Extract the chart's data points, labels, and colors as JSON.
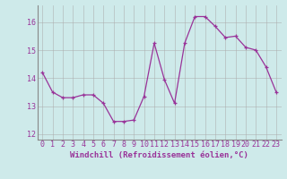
{
  "x": [
    0,
    1,
    2,
    3,
    4,
    5,
    6,
    7,
    8,
    9,
    10,
    11,
    12,
    13,
    14,
    15,
    16,
    17,
    18,
    19,
    20,
    21,
    22,
    23
  ],
  "y": [
    14.2,
    13.5,
    13.3,
    13.3,
    13.4,
    13.4,
    13.1,
    12.45,
    12.45,
    12.5,
    13.35,
    15.25,
    13.95,
    13.1,
    15.25,
    16.2,
    16.2,
    15.85,
    15.45,
    15.5,
    15.1,
    15.0,
    14.4,
    13.5
  ],
  "line_color": "#993399",
  "marker": "+",
  "marker_size": 3,
  "linewidth": 0.9,
  "bg_color": "#ceeaea",
  "grid_color": "#aaaaaa",
  "border_color": "#888888",
  "xlabel": "Windchill (Refroidissement éolien,°C)",
  "xlabel_color": "#993399",
  "xlabel_fontsize": 6.5,
  "tick_color": "#993399",
  "tick_fontsize": 6,
  "ylim": [
    11.8,
    16.6
  ],
  "xlim": [
    -0.5,
    23.5
  ],
  "yticks": [
    12,
    13,
    14,
    15,
    16
  ],
  "xticks": [
    0,
    1,
    2,
    3,
    4,
    5,
    6,
    7,
    8,
    9,
    10,
    11,
    12,
    13,
    14,
    15,
    16,
    17,
    18,
    19,
    20,
    21,
    22,
    23
  ]
}
